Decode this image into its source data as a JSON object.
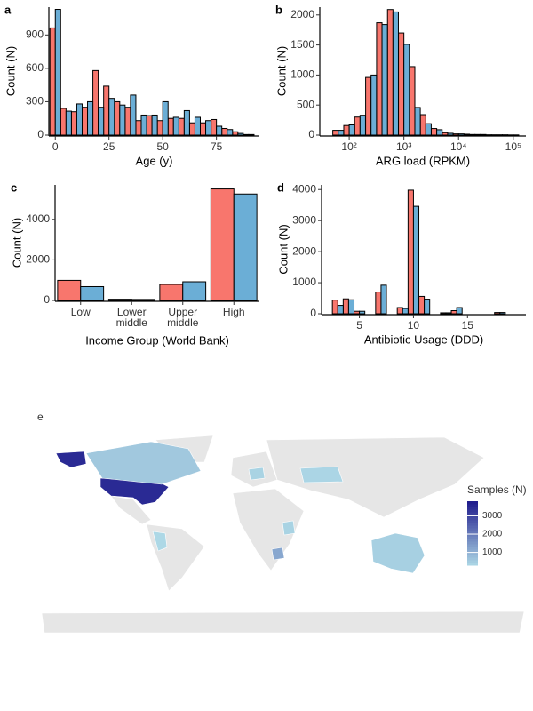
{
  "chart_data": [
    {
      "type": "bar",
      "label": "a",
      "xlabel": "Age (y)",
      "ylabel": "Count (N)",
      "x": [
        0,
        5,
        10,
        15,
        20,
        25,
        30,
        35,
        40,
        45,
        50,
        55,
        60,
        65,
        70,
        75,
        80,
        85,
        90
      ],
      "series": [
        {
          "color": "#f8766d",
          "values": [
            963,
            240,
            210,
            250,
            580,
            440,
            300,
            250,
            130,
            175,
            130,
            150,
            150,
            110,
            110,
            140,
            60,
            30,
            5
          ]
        },
        {
          "color": "#6baed6",
          "values": [
            1130,
            215,
            280,
            300,
            250,
            330,
            270,
            360,
            180,
            180,
            300,
            160,
            220,
            160,
            130,
            80,
            50,
            15,
            5
          ]
        }
      ],
      "xlim": [
        -3,
        95
      ],
      "xticks": [
        0,
        25,
        50,
        75
      ],
      "ylim": [
        0,
        1150
      ],
      "yticks": [
        0,
        300,
        600,
        900
      ]
    },
    {
      "type": "bar",
      "label": "b",
      "xlabel": "ARG load (RPKM)",
      "ylabel": "Count (N)",
      "xscale": "log",
      "x": [
        63,
        100,
        158,
        251,
        398,
        631,
        1000,
        1585,
        2512,
        3981,
        6310,
        10000,
        15849,
        25119,
        39811,
        63096,
        100000
      ],
      "series": [
        {
          "color": "#f8766d",
          "values": [
            80,
            160,
            300,
            960,
            1870,
            2090,
            1700,
            1140,
            340,
            110,
            40,
            20,
            15,
            10,
            5,
            5,
            3
          ]
        },
        {
          "color": "#6baed6",
          "values": [
            80,
            170,
            330,
            1000,
            1840,
            2050,
            1510,
            460,
            190,
            90,
            30,
            20,
            10,
            10,
            5,
            5,
            3
          ]
        }
      ],
      "xlim": [
        29,
        170000
      ],
      "xticks": [
        {
          "value": 100,
          "label": "10²"
        },
        {
          "value": 1000,
          "label": "10³"
        },
        {
          "value": 10000,
          "label": "10⁴"
        },
        {
          "value": 100000,
          "label": "10⁵"
        }
      ],
      "ylim": [
        0,
        2130
      ],
      "yticks": [
        0,
        500,
        1000,
        1500,
        2000
      ]
    },
    {
      "type": "bar",
      "label": "c",
      "xlabel": "Income Group (World Bank)",
      "ylabel": "Count (N)",
      "categories": [
        "Low",
        "Lower middle",
        "Upper middle",
        "High"
      ],
      "series": [
        {
          "color": "#f8766d",
          "values": [
            990,
            60,
            790,
            5500
          ]
        },
        {
          "color": "#6baed6",
          "values": [
            680,
            50,
            920,
            5250
          ]
        }
      ],
      "ylim": [
        0,
        5700
      ],
      "yticks": [
        0,
        2000,
        4000
      ]
    },
    {
      "type": "bar",
      "label": "d",
      "xlabel": "Antibiotic Usage (DDD)",
      "ylabel": "Count (N)",
      "x": [
        3,
        4,
        5,
        7,
        9,
        10,
        11,
        13,
        14,
        18
      ],
      "series": [
        {
          "color": "#f8766d",
          "values": [
            440,
            480,
            80,
            700,
            200,
            3980,
            560,
            30,
            100,
            40
          ]
        },
        {
          "color": "#6baed6",
          "values": [
            270,
            450,
            80,
            920,
            170,
            3460,
            470,
            30,
            200,
            40
          ]
        }
      ],
      "xlim": [
        1.5,
        20.4
      ],
      "xticks": [
        5,
        10,
        15
      ],
      "ylim": [
        0,
        4150
      ],
      "yticks": [
        0,
        1000,
        2000,
        3000,
        4000
      ]
    },
    {
      "type": "choropleth",
      "label": "e",
      "legend_title": "Samples (N)",
      "values": [
        3500,
        3500,
        600,
        300,
        400,
        1200,
        400,
        450,
        350
      ],
      "colorbar": {
        "lim": [
          300,
          3800
        ],
        "ticks": [
          1000,
          2000,
          3000
        ],
        "low": "#add8e6",
        "high": "#1e1a8c"
      }
    }
  ]
}
